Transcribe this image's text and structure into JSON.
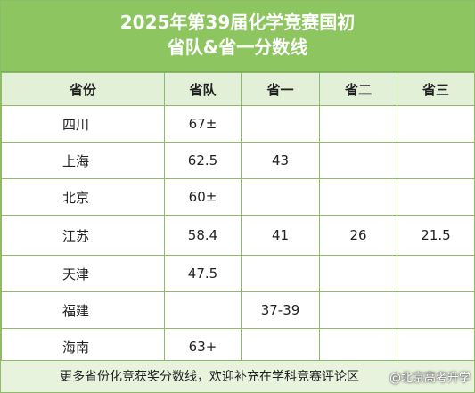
{
  "title": {
    "line1": "2025年第39届化学竞赛国初",
    "line2": "省队&省一分数线"
  },
  "table": {
    "headers": [
      "省份",
      "省队",
      "省一",
      "省二",
      "省三"
    ],
    "rows": [
      [
        "四川",
        "67±",
        "",
        "",
        ""
      ],
      [
        "上海",
        "62.5",
        "43",
        "",
        ""
      ],
      [
        "北京",
        "60±",
        "",
        "",
        ""
      ],
      [
        "江苏",
        "58.4",
        "41",
        "26",
        "21.5"
      ],
      [
        "天津",
        "47.5",
        "",
        "",
        ""
      ],
      [
        "福建",
        "",
        "37-39",
        "",
        ""
      ],
      [
        "海南",
        "63+",
        "",
        "",
        ""
      ]
    ]
  },
  "footer": {
    "text": "更多省份化竞获奖分数线，欢迎补充在学科竞赛评论区"
  },
  "watermark": {
    "text": "@北京高考升学"
  },
  "colors": {
    "title_bg": "#8dc560",
    "header_bg": "#e3f0d8",
    "footer_bg": "#e8f3de",
    "border": "#8fba6a"
  }
}
